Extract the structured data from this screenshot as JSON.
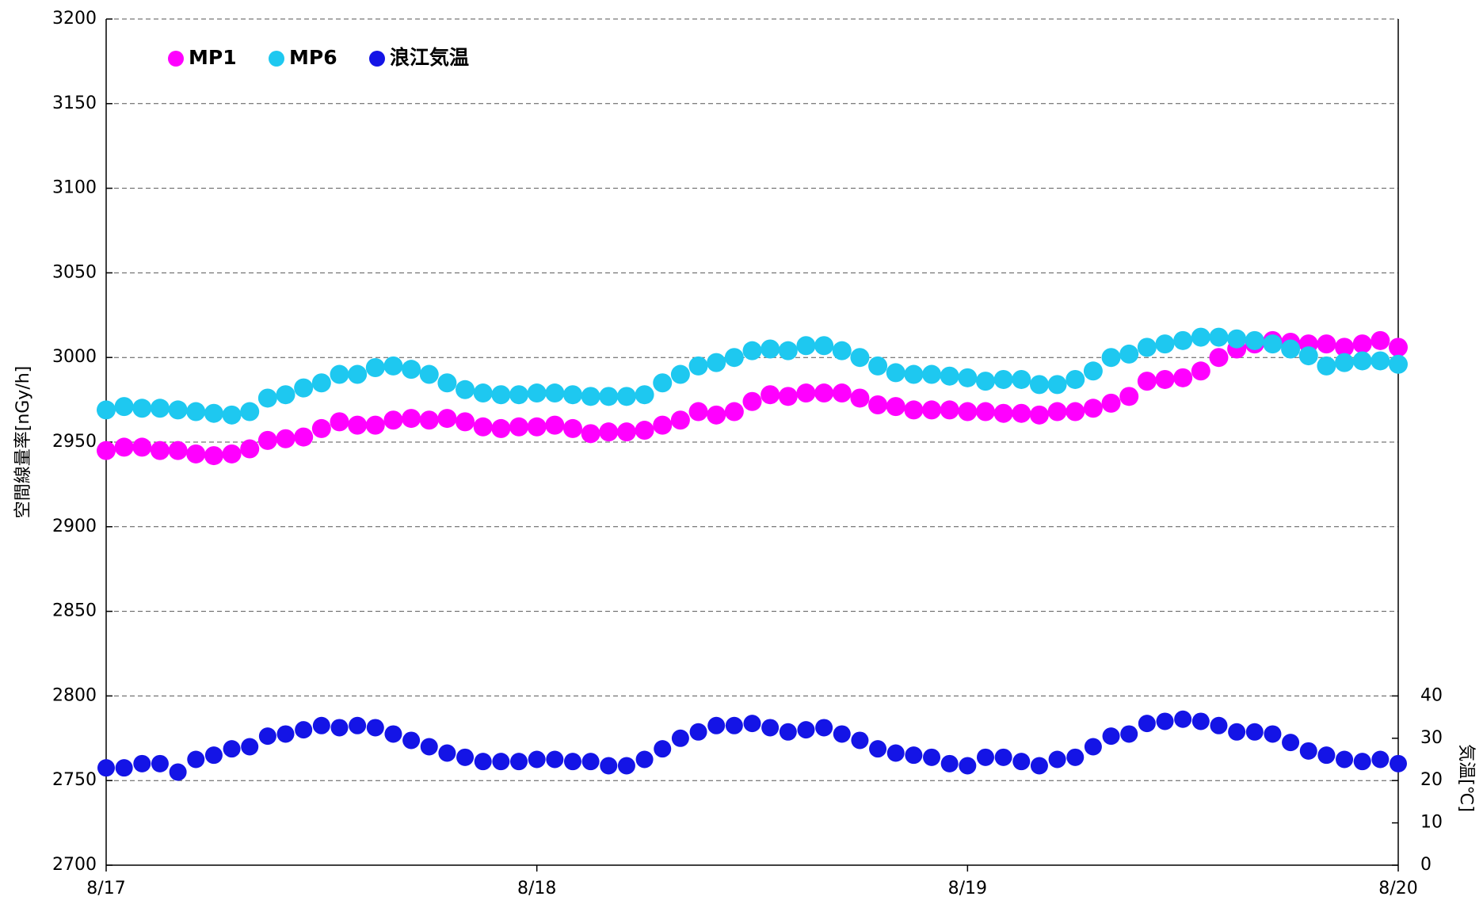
{
  "chart_data": {
    "type": "scatter",
    "ylabel": "空間線量率[nGy/h]",
    "y2label": "気温[℃]",
    "x": [
      0,
      1,
      2,
      3,
      4,
      5,
      6,
      7,
      8,
      9,
      10,
      11,
      12,
      13,
      14,
      15,
      16,
      17,
      18,
      19,
      20,
      21,
      22,
      23,
      24,
      25,
      26,
      27,
      28,
      29,
      30,
      31,
      32,
      33,
      34,
      35,
      36,
      37,
      38,
      39,
      40,
      41,
      42,
      43,
      44,
      45,
      46,
      47,
      48,
      49,
      50,
      51,
      52,
      53,
      54,
      55,
      56,
      57,
      58,
      59,
      60,
      61,
      62,
      63,
      64,
      65,
      66,
      67,
      68,
      69,
      70,
      71,
      72
    ],
    "xlim": [
      0,
      72
    ],
    "xticks": [
      {
        "value": 0,
        "label": "8/17"
      },
      {
        "value": 24,
        "label": "8/18"
      },
      {
        "value": 48,
        "label": "8/19"
      },
      {
        "value": 72,
        "label": "8/20"
      }
    ],
    "ylim": [
      2700,
      3200
    ],
    "yticks": [
      2700,
      2750,
      2800,
      2850,
      2900,
      2950,
      3000,
      3050,
      3100,
      3150,
      3200
    ],
    "y2lim": [
      0,
      200
    ],
    "y2ticks": [
      0,
      10,
      20,
      30,
      40
    ],
    "grid": true,
    "legend": "top-left",
    "series": [
      {
        "name": "MP1",
        "color": "#ff00ff",
        "values": [
          2945,
          2947,
          2947,
          2945,
          2945,
          2943,
          2942,
          2943,
          2946,
          2951,
          2952,
          2953,
          2958,
          2962,
          2960,
          2960,
          2963,
          2964,
          2963,
          2964,
          2962,
          2959,
          2958,
          2959,
          2959,
          2960,
          2958,
          2955,
          2956,
          2956,
          2957,
          2960,
          2963,
          2968,
          2966,
          2968,
          2974,
          2978,
          2977,
          2979,
          2979,
          2979,
          2976,
          2972,
          2971,
          2969,
          2969,
          2969,
          2968,
          2968,
          2967,
          2967,
          2966,
          2968,
          2968,
          2970,
          2973,
          2977,
          2986,
          2987,
          2988,
          2992,
          3000,
          3005,
          3008,
          3010,
          3009,
          3008,
          3008,
          3006,
          3008,
          3010,
          3006
        ]
      },
      {
        "name": "MP6",
        "color": "#1ec8f0",
        "values": [
          2969,
          2971,
          2970,
          2970,
          2969,
          2968,
          2967,
          2966,
          2968,
          2976,
          2978,
          2982,
          2985,
          2990,
          2990,
          2994,
          2995,
          2993,
          2990,
          2985,
          2981,
          2979,
          2978,
          2978,
          2979,
          2979,
          2978,
          2977,
          2977,
          2977,
          2978,
          2985,
          2990,
          2995,
          2997,
          3000,
          3004,
          3005,
          3004,
          3007,
          3007,
          3004,
          3000,
          2995,
          2991,
          2990,
          2990,
          2989,
          2988,
          2986,
          2987,
          2987,
          2984,
          2984,
          2987,
          2992,
          3000,
          3002,
          3006,
          3008,
          3010,
          3012,
          3012,
          3011,
          3010,
          3008,
          3005,
          3001,
          2995,
          2997,
          2998,
          2998,
          2996
        ]
      },
      {
        "name": "浪江気温",
        "color": "#1414e6",
        "axis": "y2",
        "values": [
          23,
          23,
          24,
          24,
          22,
          25,
          26,
          27.5,
          28,
          30.5,
          31,
          32,
          33,
          32.5,
          33,
          32.5,
          31,
          29.5,
          28,
          26.5,
          25.5,
          24.5,
          24.5,
          24.5,
          25,
          25,
          24.5,
          24.5,
          23.5,
          23.5,
          25,
          27.5,
          30,
          31.5,
          33,
          33,
          33.5,
          32.5,
          31.5,
          32,
          32.5,
          31,
          29.5,
          27.5,
          26.5,
          26,
          25.5,
          24,
          23.5,
          25.5,
          25.5,
          24.5,
          23.5,
          25,
          25.5,
          28,
          30.5,
          31,
          33.5,
          34,
          34.5,
          34,
          33,
          31.5,
          31.5,
          31,
          29,
          27,
          26,
          25,
          24.5,
          25,
          24
        ]
      }
    ]
  }
}
